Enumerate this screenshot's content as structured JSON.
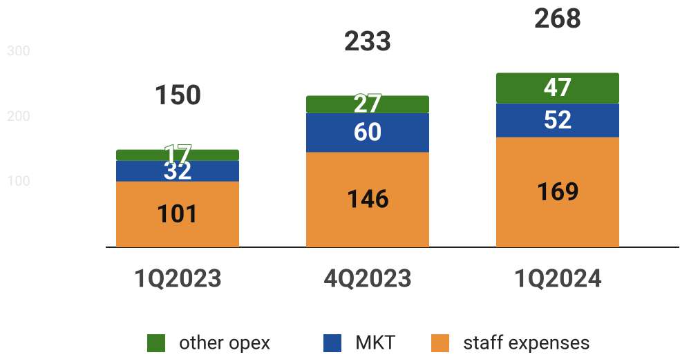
{
  "chart_data": {
    "type": "stacked_bar",
    "categories": [
      "1Q2023",
      "4Q2023",
      "1Q2024"
    ],
    "series": [
      {
        "name": "other opex",
        "color": "#3a7d23",
        "values": [
          17,
          27,
          47
        ]
      },
      {
        "name": "MKT",
        "color": "#1f4e9a",
        "values": [
          32,
          60,
          52
        ]
      },
      {
        "name": "staff expenses",
        "color": "#e8913a",
        "values": [
          101,
          146,
          169
        ]
      }
    ],
    "totals": [
      150,
      233,
      268
    ],
    "ylim": [
      0,
      380
    ],
    "yticks": [
      100,
      200,
      300
    ],
    "legend": "bottom"
  }
}
